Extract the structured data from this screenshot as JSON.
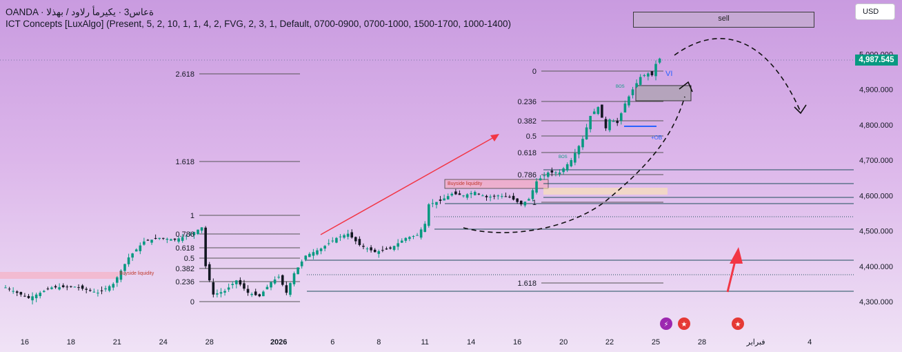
{
  "header": {
    "symbol_line": "OANDA · ةعاس3 · يكيرمأ رلاود / بهذلا",
    "indicator_line": "ICT Concepts [LuxAlgo] (Present, 5, 2, 10, 1, 1, 4, 2, FVG, 2, 3, 1, Default, 0700-0900, 0700-1000, 1500-1700, 1000-1400)"
  },
  "currency_button": "USD",
  "sell_label": "sell",
  "current_price": "4,987.545",
  "colors": {
    "up": "#089981",
    "down": "#131722",
    "trend_arrow": "#f23645",
    "fib_line": "#555555",
    "structure_line": "#1e4f5c",
    "ob_line": "#2962ff",
    "price_tag": "#089981"
  },
  "icons": [
    "lightning-event-icon",
    "us-flag-icon",
    "us-flag-icon"
  ],
  "chart_data": {
    "type": "candlestick",
    "y_axis": {
      "side": "right",
      "range": [
        4270,
        5030
      ],
      "ticks": [
        4300,
        4400,
        4500,
        4600,
        4700,
        4800,
        4900,
        5000
      ],
      "tick_labels": [
        "4,300.000",
        "4,400.000",
        "4,500.000",
        "4,600.000",
        "4,700.000",
        "4,800.000",
        "4,900.000",
        "5,000.000"
      ]
    },
    "x_axis": {
      "ticks": [
        {
          "label": "16",
          "bar": 5
        },
        {
          "label": "18",
          "bar": 17
        },
        {
          "label": "21",
          "bar": 29
        },
        {
          "label": "24",
          "bar": 41
        },
        {
          "label": "28",
          "bar": 53
        },
        {
          "label": "2026",
          "bar": 71,
          "bold": true
        },
        {
          "label": "6",
          "bar": 85
        },
        {
          "label": "8",
          "bar": 97
        },
        {
          "label": "11",
          "bar": 109
        },
        {
          "label": "14",
          "bar": 121
        },
        {
          "label": "16",
          "bar": 133
        },
        {
          "label": "20",
          "bar": 145
        },
        {
          "label": "22",
          "bar": 157
        },
        {
          "label": "25",
          "bar": 169
        },
        {
          "label": "28",
          "bar": 181
        },
        {
          "label": "فبراير",
          "bar": 195
        },
        {
          "label": "4",
          "bar": 209
        }
      ]
    },
    "price_path": [
      [
        0,
        4340
      ],
      [
        6,
        4310
      ],
      [
        12,
        4340
      ],
      [
        18,
        4342
      ],
      [
        24,
        4325
      ],
      [
        28,
        4350
      ],
      [
        32,
        4425
      ],
      [
        36,
        4470
      ],
      [
        40,
        4480
      ],
      [
        44,
        4475
      ],
      [
        48,
        4490
      ],
      [
        51,
        4510
      ],
      [
        52,
        4400
      ],
      [
        54,
        4320
      ],
      [
        57,
        4330
      ],
      [
        60,
        4360
      ],
      [
        63,
        4325
      ],
      [
        66,
        4315
      ],
      [
        69,
        4355
      ],
      [
        71,
        4370
      ],
      [
        73,
        4325
      ],
      [
        75,
        4380
      ],
      [
        78,
        4430
      ],
      [
        82,
        4450
      ],
      [
        86,
        4480
      ],
      [
        89,
        4492
      ],
      [
        92,
        4460
      ],
      [
        96,
        4440
      ],
      [
        100,
        4450
      ],
      [
        104,
        4480
      ],
      [
        107,
        4488
      ],
      [
        109,
        4520
      ],
      [
        110,
        4575
      ],
      [
        113,
        4585
      ],
      [
        116,
        4605
      ],
      [
        119,
        4600
      ],
      [
        122,
        4610
      ],
      [
        125,
        4595
      ],
      [
        128,
        4600
      ],
      [
        131,
        4595
      ],
      [
        134,
        4575
      ],
      [
        136,
        4590
      ],
      [
        138,
        4640
      ],
      [
        141,
        4665
      ],
      [
        144,
        4665
      ],
      [
        147,
        4700
      ],
      [
        150,
        4760
      ],
      [
        152,
        4825
      ],
      [
        154,
        4850
      ],
      [
        156,
        4790
      ],
      [
        157,
        4815
      ],
      [
        159,
        4805
      ],
      [
        161,
        4860
      ],
      [
        163,
        4900
      ],
      [
        165,
        4935
      ],
      [
        167,
        4945
      ],
      [
        168,
        4940
      ],
      [
        169,
        4972
      ],
      [
        170,
        4987
      ]
    ],
    "fib_left": {
      "levels": [
        "0",
        "0.236",
        "0.382",
        "0.5",
        "0.618",
        "0.786",
        "1",
        "1.618",
        "2.618"
      ]
    },
    "fib_right": {
      "levels": [
        "0",
        "0.236",
        "0.382",
        "0.5",
        "0.618",
        "0.786",
        "1",
        "1.618"
      ]
    },
    "annotations": [
      "Buyside liquidity",
      "Buyside liquidity",
      "BOS",
      "BOS",
      "+OB",
      "VI",
      "sell"
    ]
  }
}
